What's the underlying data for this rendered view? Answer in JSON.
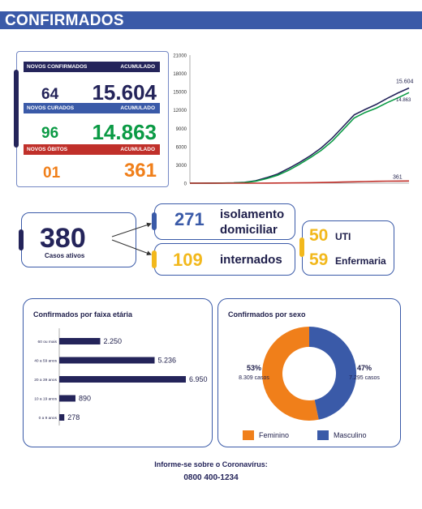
{
  "header": {
    "title": "CONFIRMADOS"
  },
  "stats": {
    "confirmed": {
      "label": "NOVOS CONFIRMADOS",
      "acc_label": "ACUMULADO",
      "new": "64",
      "total": "15.604"
    },
    "recovered": {
      "label": "NOVOS CURADOS",
      "acc_label": "ACUMULADO",
      "new": "96",
      "total": "14.863"
    },
    "deaths": {
      "label": "NOVOS ÓBITOS",
      "acc_label": "ACUMULADO",
      "new": "01",
      "total": "361"
    }
  },
  "colors": {
    "navy": "#24245a",
    "blue": "#3a5aa8",
    "green": "#0a9a44",
    "orange": "#f07f1a",
    "red": "#c0302a",
    "yellow": "#f2b81c"
  },
  "active": {
    "total": "380",
    "total_label": "Casos ativos",
    "isolation_value": "271",
    "isolation_label_1": "isolamento",
    "isolation_label_2": "domiciliar",
    "hospital_value": "109",
    "hospital_label": "internados",
    "uti_value": "50",
    "uti_label": "UTI",
    "ward_value": "59",
    "ward_label": "Enfermaria"
  },
  "footer": {
    "line1": "Informe-se sobre o Coronavírus:",
    "line2": "0800 400-1234"
  },
  "chart_data": [
    {
      "type": "line",
      "ylim": [
        0,
        21000
      ],
      "yticks": [
        "21000",
        "18000",
        "15000",
        "12000",
        "9000",
        "6000",
        "3000",
        "0"
      ],
      "yticks_values": [
        21000,
        18000,
        15000,
        12000,
        9000,
        6000,
        3000,
        0
      ],
      "x": [
        0,
        1,
        2,
        3,
        4,
        5,
        6,
        7,
        8,
        9,
        10,
        11,
        12,
        13,
        14,
        15,
        16,
        17,
        18,
        19,
        20
      ],
      "series": [
        {
          "color": "#24245a",
          "values": [
            0,
            0,
            10,
            30,
            60,
            150,
            400,
            900,
            1500,
            2400,
            3400,
            4500,
            5800,
            7400,
            9300,
            11200,
            12100,
            12900,
            13900,
            14800,
            15604
          ],
          "end_label": "15.604"
        },
        {
          "color": "#0a9a44",
          "values": [
            0,
            0,
            5,
            20,
            40,
            110,
            320,
            750,
            1300,
            2100,
            3100,
            4200,
            5400,
            6900,
            8800,
            10700,
            11600,
            12300,
            13200,
            14000,
            14863
          ],
          "end_label": "14.863"
        },
        {
          "color": "#c0302a",
          "values": [
            0,
            0,
            0,
            0,
            1,
            3,
            6,
            10,
            20,
            35,
            55,
            80,
            110,
            150,
            190,
            230,
            270,
            300,
            330,
            350,
            361
          ],
          "end_label": "361"
        }
      ]
    },
    {
      "type": "bar",
      "orientation": "horizontal",
      "title": "Confirmados por faixa etária",
      "categories": [
        "60 ou mais",
        "40 a 59 anos",
        "20 a 39 anos",
        "10 a 19 anos",
        "0 a 9 anos"
      ],
      "values": [
        2250,
        5236,
        6950,
        890,
        278
      ],
      "value_labels": [
        "2.250",
        "5.236",
        "6.950",
        "890",
        "278"
      ],
      "color": "#24245a"
    },
    {
      "type": "pie",
      "donut": true,
      "title": "Confirmados por sexo",
      "labels": [
        "Feminino",
        "Masculino"
      ],
      "values": [
        8309,
        7295
      ],
      "percent_labels": [
        "53%",
        "47%"
      ],
      "count_labels": [
        "8.309 casos",
        "7.295 casos"
      ],
      "colors": [
        "#f07f1a",
        "#3a5aa8"
      ]
    }
  ]
}
